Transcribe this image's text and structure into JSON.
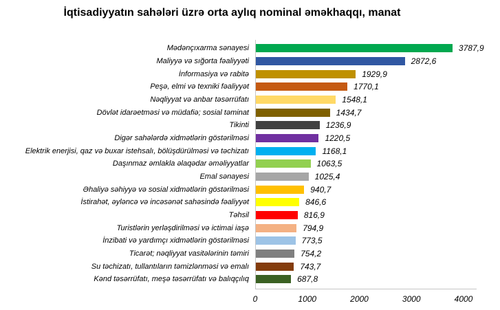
{
  "title": "İqtisadiyyatın sahələri üzrə orta aylıq nominal əməkhaqqı, manat",
  "chart_data": {
    "type": "bar",
    "orientation": "horizontal",
    "title": "İqtisadiyyatın sahələri üzrə orta aylıq nominal əməkhaqqı, manat",
    "xlabel": "",
    "ylabel": "",
    "xlim": [
      0,
      4000
    ],
    "x_ticks": [
      "0",
      "1000",
      "2000",
      "3000",
      "4000"
    ],
    "grid": false,
    "legend": false,
    "categories": [
      "Mədənçıxarma sənayesi",
      "Maliyyə və sığorta fəaliyyəti",
      "İnformasiya və rabitə",
      "Peşə, elmi və texniki fəaliyyət",
      "Nəqliyyat və anbar təsərrüfatı",
      "Dövlət idarəetməsi və müdafiə; sosial təminat",
      "Tikinti",
      "Digər sahələrdə xidmətlərin göstərilməsi",
      "Elektrik enerjisi, qaz və buxar istehsalı, bölüşdürülməsi və təchizatı",
      "Daşınmaz əmlakla əlaqədar əməliyyatlar",
      "Emal sənayesi",
      "Əhaliyə səhiyyə və sosial xidmətlərin göstərilməsi",
      "İstirahət, əyləncə və incəsənət sahəsində fəaliyyət",
      "Təhsil",
      "Turistlərin yerləşdirilməsi və ictimai iaşə",
      "İnzibati və yardımçı xidmətlərin göstərilməsi",
      "Ticarət; nəqliyyat vasitələrinin təmiri",
      "Su təchizatı, tullantıların təmizlənməsi və emalı",
      "Kənd təsərrüfatı, meşə təsərrüfatı və balıqçılıq"
    ],
    "values": [
      3787.9,
      2872.6,
      1929.9,
      1770.1,
      1548.1,
      1434.7,
      1236.9,
      1220.5,
      1168.1,
      1063.5,
      1025.4,
      940.7,
      846.6,
      816.9,
      794.9,
      773.5,
      754.2,
      743.7,
      687.8
    ],
    "value_labels": [
      "3787,9",
      "2872,6",
      "1929,9",
      "1770,1",
      "1548,1",
      "1434,7",
      "1236,9",
      "1220,5",
      "1168,1",
      "1063,5",
      "1025,4",
      "940,7",
      "846,6",
      "816,9",
      "794,9",
      "773,5",
      "754,2",
      "743,7",
      "687,8"
    ],
    "colors": [
      "#00A84F",
      "#3057A2",
      "#BF9000",
      "#C55A11",
      "#FFD966",
      "#7F6000",
      "#404040",
      "#7030A0",
      "#00B0F0",
      "#92D050",
      "#A6A6A6",
      "#FFC000",
      "#FFFF00",
      "#FF0000",
      "#F4B183",
      "#9DC3E6",
      "#808080",
      "#843C0C",
      "#3B6123"
    ],
    "axis_color": "#c6c6c6"
  }
}
